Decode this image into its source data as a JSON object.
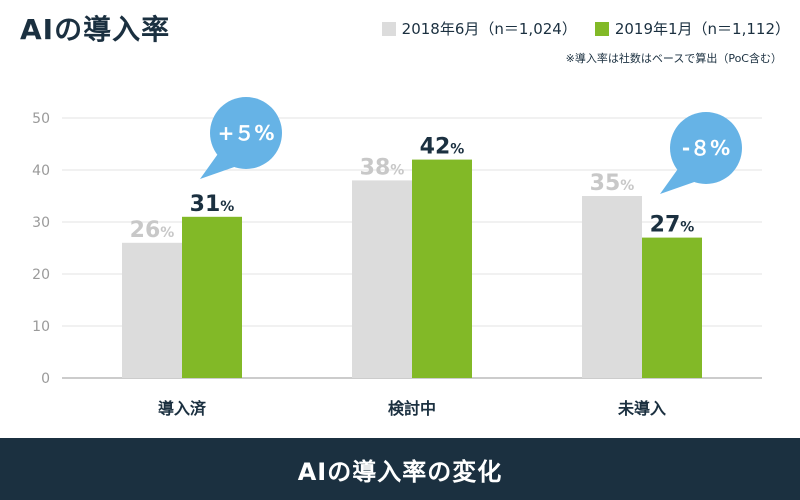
{
  "title": "AIの導入率",
  "footer_title": "AIの導入率の変化",
  "note": "※導入率は社数はベースで算出（PoC含む）",
  "chart_data": {
    "type": "bar",
    "categories": [
      "導入済",
      "検討中",
      "未導入"
    ],
    "series": [
      {
        "name": "2018年6月（n＝1,024）",
        "color": "#dcdcdc",
        "label_color": "#c8c8c8",
        "values": [
          26,
          38,
          35
        ]
      },
      {
        "name": "2019年1月（n＝1,112）",
        "color": "#82b927",
        "label_color": "#1b3040",
        "values": [
          31,
          42,
          27
        ]
      }
    ],
    "ylim": [
      0,
      50
    ],
    "yticks": [
      "0",
      "10",
      "20",
      "30",
      "40",
      "50"
    ],
    "grid": true,
    "legend_position": "top-right",
    "value_suffix": "%",
    "annotations": [
      {
        "text": "+５%",
        "category": "導入済",
        "tail": "bottom-left"
      },
      {
        "text": "-８%",
        "category": "未導入",
        "tail": "bottom-left"
      }
    ],
    "annotation_color": "#66b3e6"
  }
}
